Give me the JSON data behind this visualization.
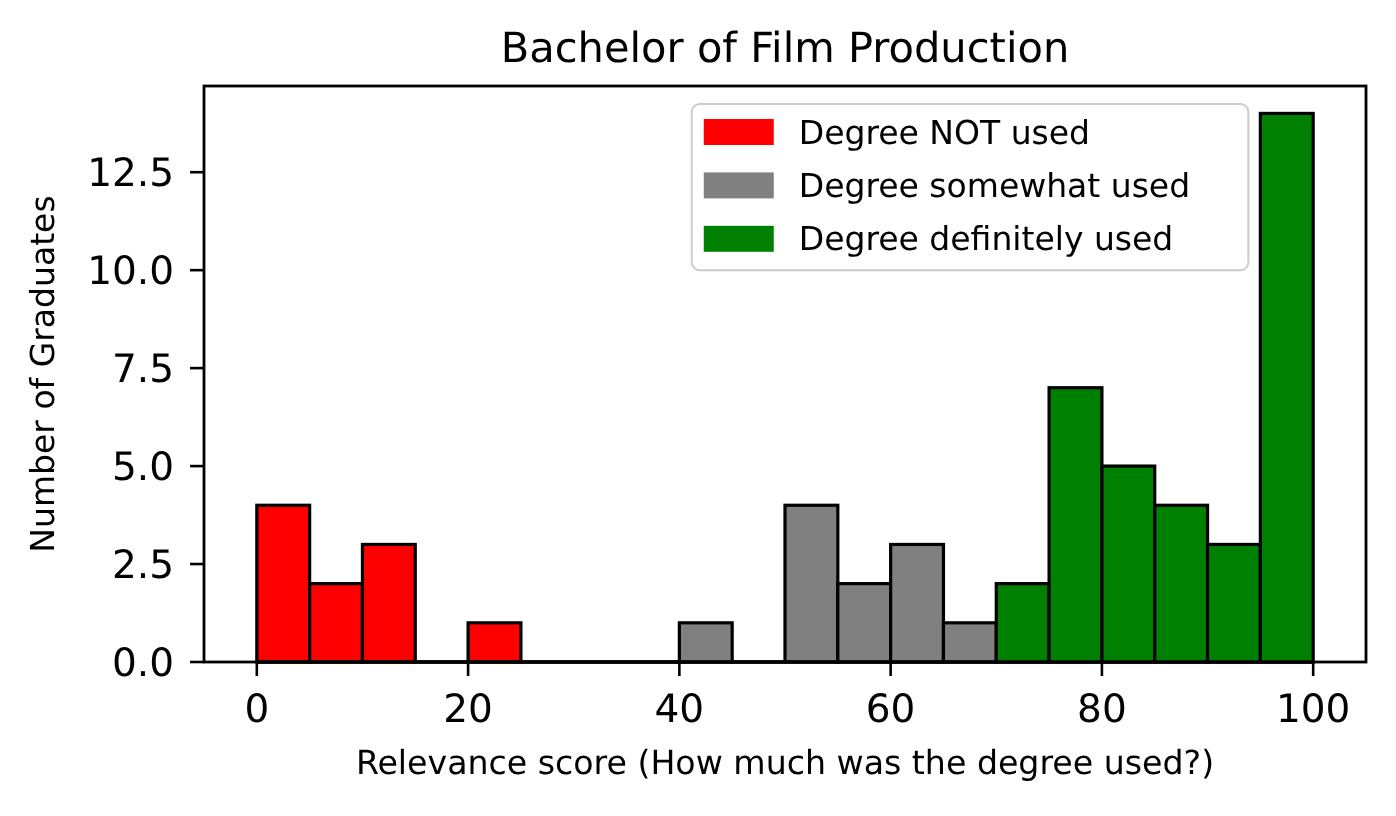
{
  "chart_data": {
    "type": "histogram",
    "title": "Bachelor of Film Production",
    "xlabel": "Relevance score (How much was the degree used?)",
    "ylabel": "Number of Graduates",
    "bins": [
      0,
      5,
      10,
      15,
      20,
      25,
      30,
      35,
      40,
      45,
      50,
      55,
      60,
      65,
      70,
      75,
      80,
      85,
      90,
      95,
      100
    ],
    "series": [
      {
        "name": "Degree NOT used",
        "color": "#ff0000",
        "values": [
          4,
          2,
          3,
          0,
          1,
          0,
          0,
          0,
          0,
          0,
          0,
          0,
          0,
          0,
          0,
          0,
          0,
          0,
          0,
          0
        ]
      },
      {
        "name": "Degree somewhat used",
        "color": "#808080",
        "values": [
          0,
          0,
          0,
          0,
          0,
          0,
          0,
          0,
          1,
          0,
          4,
          2,
          3,
          1,
          0,
          0,
          0,
          0,
          0,
          0
        ]
      },
      {
        "name": "Degree definitely used",
        "color": "#008000",
        "values": [
          0,
          0,
          0,
          0,
          0,
          0,
          0,
          0,
          0,
          0,
          0,
          0,
          0,
          0,
          2,
          7,
          5,
          4,
          3,
          14
        ]
      }
    ],
    "xlim": [
      -5,
      105
    ],
    "ylim": [
      0,
      14.7
    ],
    "xticks": [
      0,
      20,
      40,
      60,
      80,
      100
    ],
    "yticks": [
      {
        "value": 0,
        "label": "0.0"
      },
      2.5,
      {
        "value": 5,
        "label": "5.0"
      },
      7.5,
      {
        "value": 10,
        "label": "10.0"
      },
      12.5
    ],
    "legend": "top right"
  }
}
